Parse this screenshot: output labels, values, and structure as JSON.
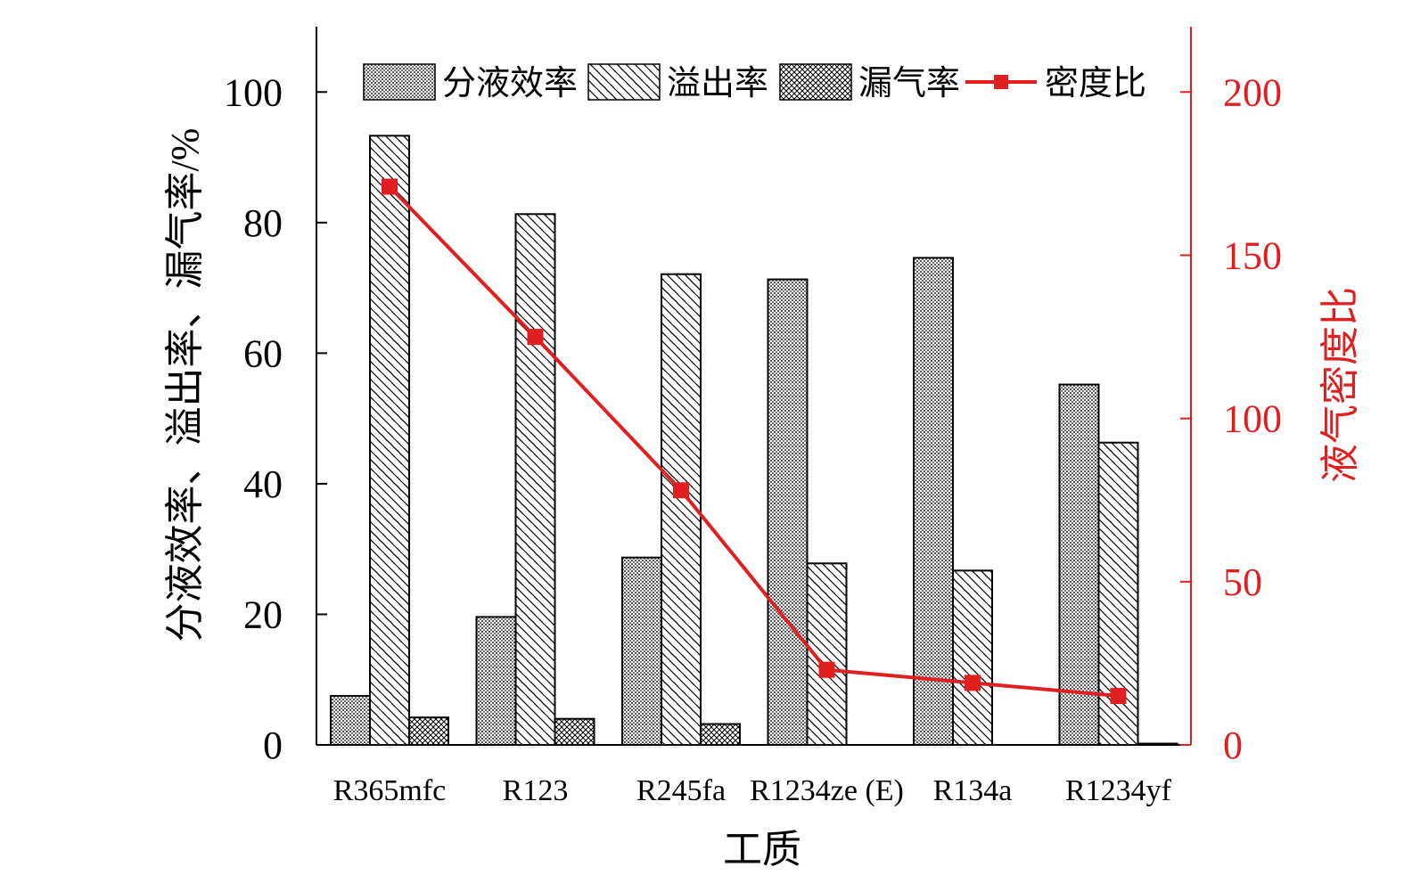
{
  "colors": {
    "axis": "#000000",
    "right_axis": "#e02020",
    "line": "#e02020",
    "bar_fill": "#ffffff",
    "bar_stroke": "#000000"
  },
  "chart_data": {
    "type": "bar",
    "categories": [
      "R365mfc",
      "R123",
      "R245fa",
      "R1234ze (E)",
      "R134a",
      "R1234yf"
    ],
    "xlabel": "工质",
    "ylabel": "分液效率、溢出率、漏气率/%",
    "ylabel_right": "液气密度比",
    "ylim": [
      0,
      110
    ],
    "ylim_right": [
      0,
      220
    ],
    "yticks": [
      "0",
      "20",
      "40",
      "60",
      "80",
      "100"
    ],
    "yticks_right": [
      "0",
      "50",
      "100",
      "150",
      "200"
    ],
    "grid": false,
    "legend_position": "top",
    "series": [
      {
        "name": "分液效率",
        "kind": "bar",
        "pattern": "dots",
        "values": [
          7.5,
          19.6,
          28.7,
          71.3,
          74.6,
          55.2
        ]
      },
      {
        "name": "溢出率",
        "kind": "bar",
        "pattern": "hatch",
        "values": [
          93.3,
          81.3,
          72.1,
          27.8,
          26.7,
          46.3
        ]
      },
      {
        "name": "漏气率",
        "kind": "bar",
        "pattern": "crosshatch",
        "values": [
          4.2,
          4.0,
          3.2,
          0,
          0,
          0.2
        ]
      },
      {
        "name": "密度比",
        "kind": "line",
        "marker": "square",
        "axis": "right",
        "values": [
          171,
          125,
          78,
          23,
          19,
          15
        ]
      }
    ]
  }
}
